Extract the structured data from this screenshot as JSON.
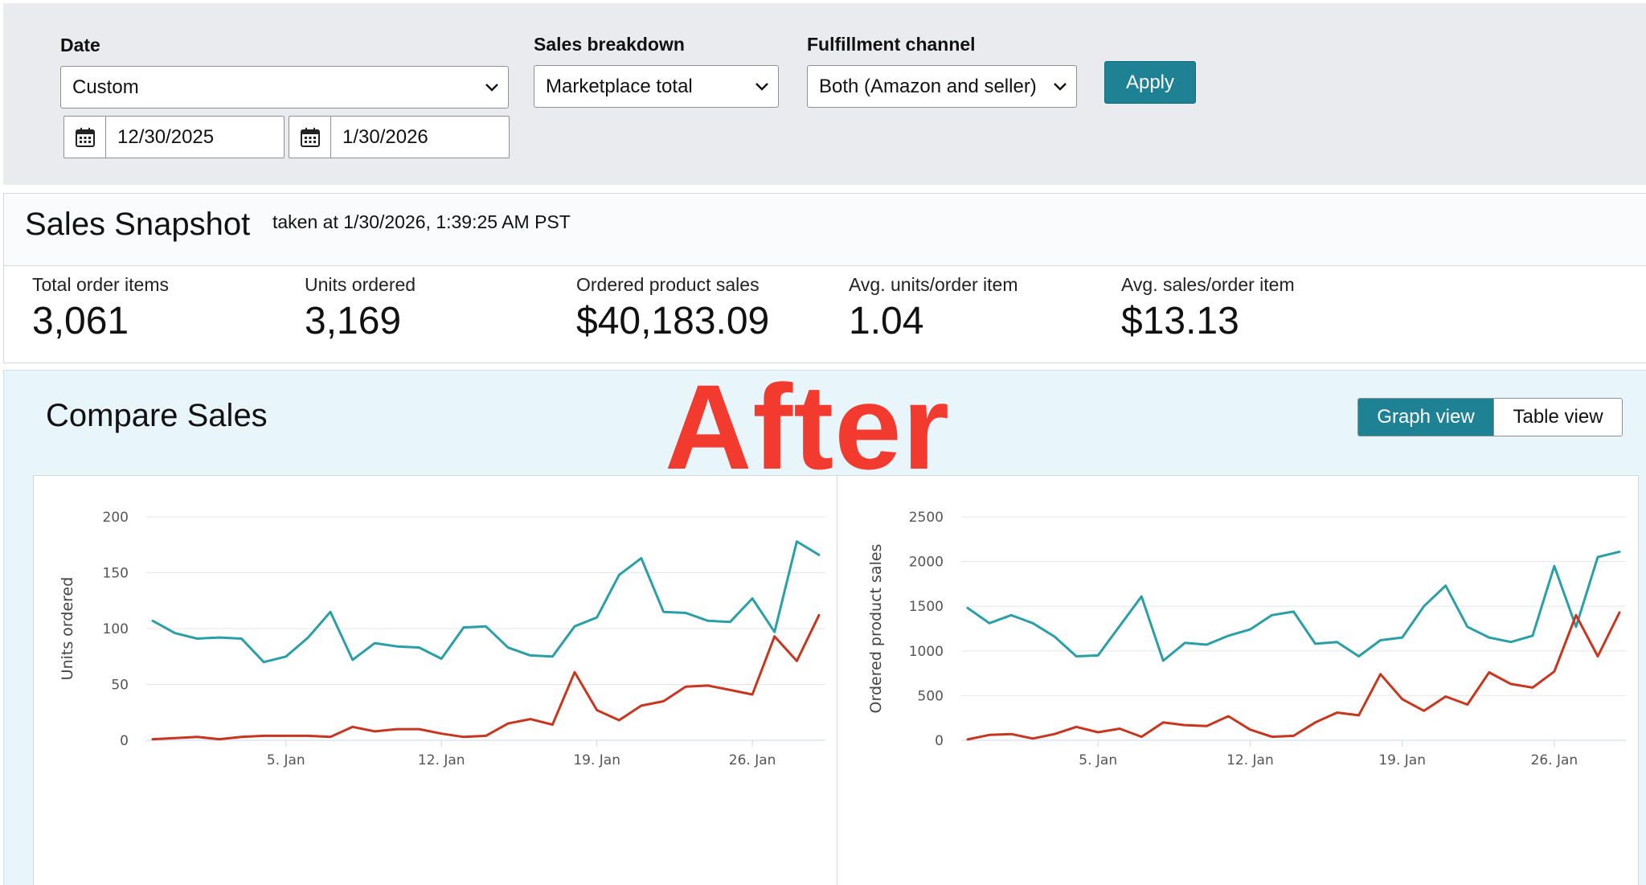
{
  "filters": {
    "date": {
      "label": "Date",
      "value": "Custom",
      "start": "12/30/2025",
      "end": "1/30/2026"
    },
    "breakdown": {
      "label": "Sales breakdown",
      "value": "Marketplace total"
    },
    "fulfillment": {
      "label": "Fulfillment channel",
      "value": "Both (Amazon and seller)"
    },
    "apply_label": "Apply"
  },
  "snapshot": {
    "title": "Sales Snapshot",
    "taken": "taken at 1/30/2026, 1:39:25 AM PST",
    "metrics": [
      {
        "label": "Total order items",
        "value": "3,061"
      },
      {
        "label": "Units ordered",
        "value": "3,169"
      },
      {
        "label": "Ordered product sales",
        "value": "$40,183.09"
      },
      {
        "label": "Avg. units/order item",
        "value": "1.04"
      },
      {
        "label": "Avg. sales/order item",
        "value": "$13.13"
      }
    ]
  },
  "compare": {
    "title": "Compare Sales",
    "overlay": "After",
    "toggle": {
      "graph": "Graph view",
      "table": "Table view"
    }
  },
  "colors": {
    "teal": "#2a9fa8",
    "red": "#c7361f",
    "accent": "#1e8294"
  },
  "chart_data": [
    {
      "type": "line",
      "ylabel": "Units ordered",
      "ylim": [
        0,
        200
      ],
      "yticks": [
        0,
        50,
        100,
        150,
        200
      ],
      "xticks": [
        {
          "day": 6,
          "label": "5. Jan"
        },
        {
          "day": 13,
          "label": "12. Jan"
        },
        {
          "day": 20,
          "label": "19. Jan"
        },
        {
          "day": 27,
          "label": "26. Jan"
        }
      ],
      "x_start": "2025-12-30",
      "grid": true,
      "series": [
        {
          "color": "#2a9fa8",
          "values": [
            107,
            96,
            91,
            92,
            91,
            70,
            75,
            92,
            115,
            72,
            87,
            84,
            83,
            73,
            101,
            102,
            83,
            76,
            75,
            102,
            110,
            148,
            163,
            115,
            114,
            107,
            106,
            127,
            97,
            178,
            166
          ]
        },
        {
          "color": "#c7361f",
          "values": [
            1,
            2,
            3,
            1,
            3,
            4,
            4,
            4,
            3,
            12,
            8,
            10,
            10,
            6,
            3,
            4,
            15,
            19,
            14,
            61,
            27,
            18,
            31,
            35,
            48,
            49,
            45,
            41,
            93,
            71,
            112
          ]
        }
      ]
    },
    {
      "type": "line",
      "ylabel": "Ordered product sales",
      "ylim": [
        0,
        2500
      ],
      "yticks": [
        0,
        500,
        1000,
        1500,
        2000,
        2500
      ],
      "xticks": [
        {
          "day": 6,
          "label": "5. Jan"
        },
        {
          "day": 13,
          "label": "12. Jan"
        },
        {
          "day": 20,
          "label": "19. Jan"
        },
        {
          "day": 27,
          "label": "26. Jan"
        }
      ],
      "x_start": "2025-12-30",
      "grid": true,
      "series": [
        {
          "color": "#2a9fa8",
          "values": [
            1480,
            1310,
            1400,
            1310,
            1160,
            940,
            950,
            1280,
            1610,
            890,
            1090,
            1070,
            1170,
            1240,
            1400,
            1440,
            1080,
            1100,
            940,
            1120,
            1150,
            1500,
            1730,
            1270,
            1150,
            1100,
            1170,
            1950,
            1270,
            2050,
            2110
          ]
        },
        {
          "color": "#c7361f",
          "values": [
            10,
            60,
            70,
            20,
            70,
            150,
            90,
            130,
            40,
            200,
            170,
            160,
            270,
            120,
            40,
            50,
            200,
            310,
            280,
            740,
            460,
            330,
            490,
            400,
            760,
            630,
            590,
            770,
            1400,
            940,
            1430
          ]
        }
      ]
    }
  ]
}
